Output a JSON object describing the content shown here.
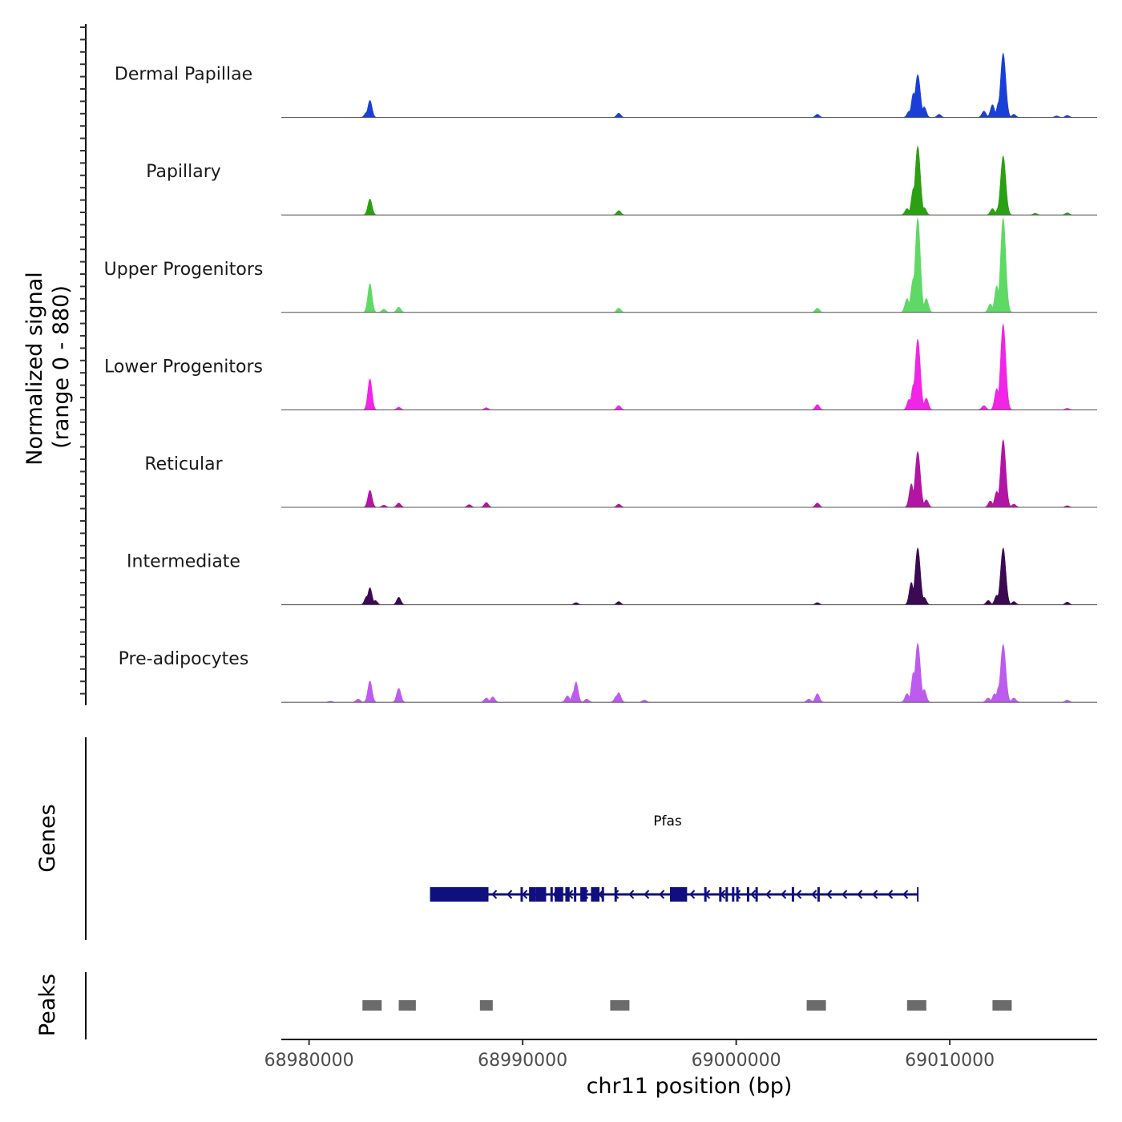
{
  "chart_data": {
    "type": "area",
    "ylabel": "Normalized signal",
    "ylabel_range": "(range 0 - 880)",
    "y_range": [
      0,
      880
    ],
    "xlabel": "chr11 position (bp)",
    "x_range": [
      68978700,
      69016900
    ],
    "x_ticks": [
      68980000,
      68990000,
      69000000,
      69010000
    ],
    "x_tick_labels": [
      "68980000",
      "68990000",
      "69000000",
      "69010000"
    ],
    "series": [
      {
        "name": "Dermal Papillae",
        "color": "#1a3fd8",
        "peaks": [
          [
            68982700,
            50
          ],
          [
            68982850,
            160
          ],
          [
            68994500,
            40
          ],
          [
            69003800,
            30
          ],
          [
            69008100,
            60
          ],
          [
            69008300,
            230
          ],
          [
            69008500,
            400
          ],
          [
            69008800,
            100
          ],
          [
            69009500,
            30
          ],
          [
            69011600,
            60
          ],
          [
            69012000,
            120
          ],
          [
            69012300,
            150
          ],
          [
            69012500,
            600
          ],
          [
            69013000,
            30
          ],
          [
            69015000,
            15
          ],
          [
            69015500,
            20
          ]
        ]
      },
      {
        "name": "Papillary",
        "color": "#2aa012",
        "peaks": [
          [
            68982850,
            150
          ],
          [
            68994500,
            40
          ],
          [
            69008000,
            60
          ],
          [
            69008300,
            250
          ],
          [
            69008500,
            640
          ],
          [
            69008800,
            70
          ],
          [
            69012000,
            60
          ],
          [
            69012300,
            80
          ],
          [
            69012500,
            550
          ],
          [
            69014000,
            15
          ],
          [
            69015500,
            20
          ]
        ]
      },
      {
        "name": "Upper Progenitors",
        "color": "#5ed965",
        "peaks": [
          [
            68982850,
            270
          ],
          [
            68983500,
            30
          ],
          [
            68984200,
            50
          ],
          [
            68994500,
            40
          ],
          [
            69003800,
            40
          ],
          [
            69008000,
            130
          ],
          [
            69008300,
            320
          ],
          [
            69008500,
            880
          ],
          [
            69008900,
            130
          ],
          [
            69011900,
            80
          ],
          [
            69012200,
            250
          ],
          [
            69012500,
            880
          ]
        ]
      },
      {
        "name": "Lower Progenitors",
        "color": "#f025e6",
        "peaks": [
          [
            68982850,
            290
          ],
          [
            68984200,
            25
          ],
          [
            68988300,
            20
          ],
          [
            68994500,
            40
          ],
          [
            69003800,
            50
          ],
          [
            69008100,
            100
          ],
          [
            69008300,
            240
          ],
          [
            69008500,
            660
          ],
          [
            69008900,
            110
          ],
          [
            69011600,
            40
          ],
          [
            69012200,
            200
          ],
          [
            69012500,
            800
          ],
          [
            69015500,
            15
          ]
        ]
      },
      {
        "name": "Reticular",
        "color": "#b214a4",
        "peaks": [
          [
            68982850,
            160
          ],
          [
            68983500,
            20
          ],
          [
            68984200,
            40
          ],
          [
            68987500,
            25
          ],
          [
            68988300,
            45
          ],
          [
            68994500,
            30
          ],
          [
            69003800,
            40
          ],
          [
            69008200,
            220
          ],
          [
            69008500,
            520
          ],
          [
            69008900,
            70
          ],
          [
            69011900,
            60
          ],
          [
            69012200,
            150
          ],
          [
            69012500,
            630
          ],
          [
            69013000,
            30
          ],
          [
            69015500,
            15
          ]
        ]
      },
      {
        "name": "Intermediate",
        "color": "#3b0a52",
        "peaks": [
          [
            68982700,
            80
          ],
          [
            68982850,
            160
          ],
          [
            68983100,
            40
          ],
          [
            68984200,
            70
          ],
          [
            68992500,
            20
          ],
          [
            68994500,
            30
          ],
          [
            69003800,
            20
          ],
          [
            69008200,
            210
          ],
          [
            69008500,
            530
          ],
          [
            69008800,
            70
          ],
          [
            69011800,
            40
          ],
          [
            69012200,
            90
          ],
          [
            69012500,
            530
          ],
          [
            69013000,
            30
          ],
          [
            69015500,
            25
          ]
        ]
      },
      {
        "name": "Pre-adipocytes",
        "color": "#bd5bef",
        "peaks": [
          [
            68981000,
            10
          ],
          [
            68982300,
            30
          ],
          [
            68982850,
            200
          ],
          [
            68984200,
            130
          ],
          [
            68988300,
            40
          ],
          [
            68988600,
            50
          ],
          [
            68992100,
            60
          ],
          [
            68992400,
            100
          ],
          [
            68992500,
            190
          ],
          [
            68993000,
            30
          ],
          [
            68994400,
            60
          ],
          [
            68994500,
            90
          ],
          [
            68995700,
            20
          ],
          [
            69003400,
            30
          ],
          [
            69003800,
            80
          ],
          [
            69008000,
            80
          ],
          [
            69008300,
            280
          ],
          [
            69008500,
            550
          ],
          [
            69008800,
            120
          ],
          [
            69011800,
            40
          ],
          [
            69012100,
            80
          ],
          [
            69012300,
            150
          ],
          [
            69012500,
            540
          ],
          [
            69013000,
            40
          ],
          [
            69015500,
            20
          ]
        ]
      }
    ],
    "genes_label": "Genes",
    "gene": {
      "name": "Pfas",
      "start": 68985700,
      "end": 69008500,
      "strand": "-",
      "exons": [
        [
          68985700,
          68988400
        ],
        [
          68989900,
          68990000
        ],
        [
          68990300,
          68990600
        ],
        [
          68990600,
          68991100
        ],
        [
          68991300,
          68991400
        ],
        [
          68991500,
          68991900
        ],
        [
          68992000,
          68992200
        ],
        [
          68992400,
          68992500
        ],
        [
          68992700,
          68993000
        ],
        [
          68993200,
          68993600
        ],
        [
          68993700,
          68993800
        ],
        [
          68994300,
          68994400
        ],
        [
          68996900,
          68997700
        ],
        [
          68998500,
          68998600
        ],
        [
          68999200,
          68999300
        ],
        [
          68999500,
          68999600
        ],
        [
          68999800,
          68999900
        ],
        [
          69000000,
          69000100
        ],
        [
          69000500,
          69000600
        ],
        [
          69000900,
          69001000
        ],
        [
          69002600,
          69002700
        ],
        [
          69003800,
          69003900
        ]
      ]
    },
    "peaks_label": "Peaks",
    "peak_regions": [
      [
        68982500,
        68983400
      ],
      [
        68984200,
        68985000
      ],
      [
        68988000,
        68988600
      ],
      [
        68994100,
        68995000
      ],
      [
        69003300,
        69004200
      ],
      [
        69008000,
        69008900
      ],
      [
        69012000,
        69012900
      ]
    ]
  }
}
